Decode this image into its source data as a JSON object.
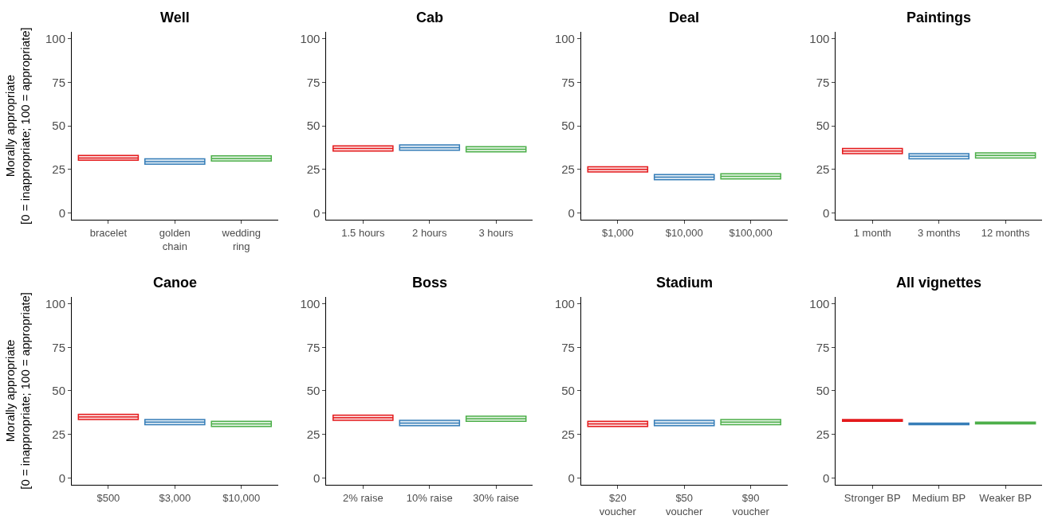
{
  "chart_data": [
    {
      "type": "box",
      "title": "Well",
      "ylabel": "Morally appropriate\n[0 = inappropriate; 100 = appropriate]",
      "categories": [
        "bracelet",
        "golden\nchain",
        "wedding\nring"
      ],
      "colors": [
        "#e41a1c",
        "#377eb8",
        "#4daf4a"
      ],
      "ylim": [
        -4,
        104
      ],
      "yticks": [
        0,
        25,
        50,
        75,
        100
      ],
      "boxes": [
        {
          "low": 30.2,
          "q1": 30.2,
          "median": 31.5,
          "q3": 33.0,
          "high": 33.0
        },
        {
          "low": 28.0,
          "q1": 28.0,
          "median": 29.5,
          "q3": 31.0,
          "high": 31.0
        },
        {
          "low": 29.8,
          "q1": 29.8,
          "median": 31.2,
          "q3": 32.8,
          "high": 32.8
        }
      ]
    },
    {
      "type": "box",
      "title": "Cab",
      "categories": [
        "1.5 hours",
        "2 hours",
        "3 hours"
      ],
      "colors": [
        "#e41a1c",
        "#377eb8",
        "#4daf4a"
      ],
      "ylim": [
        -4,
        104
      ],
      "yticks": [
        0,
        25,
        50,
        75,
        100
      ],
      "boxes": [
        {
          "low": 35.5,
          "q1": 35.5,
          "median": 37.0,
          "q3": 38.5,
          "high": 38.5
        },
        {
          "low": 36.0,
          "q1": 36.0,
          "median": 37.5,
          "q3": 39.0,
          "high": 39.0
        },
        {
          "low": 35.0,
          "q1": 35.0,
          "median": 36.5,
          "q3": 38.0,
          "high": 38.0
        }
      ]
    },
    {
      "type": "box",
      "title": "Deal",
      "categories": [
        "$1,000",
        "$10,000",
        "$100,000"
      ],
      "colors": [
        "#e41a1c",
        "#377eb8",
        "#4daf4a"
      ],
      "ylim": [
        -4,
        104
      ],
      "yticks": [
        0,
        25,
        50,
        75,
        100
      ],
      "boxes": [
        {
          "low": 23.5,
          "q1": 23.5,
          "median": 25.0,
          "q3": 26.5,
          "high": 26.5
        },
        {
          "low": 19.0,
          "q1": 19.0,
          "median": 20.5,
          "q3": 22.0,
          "high": 22.0
        },
        {
          "low": 19.5,
          "q1": 19.5,
          "median": 21.0,
          "q3": 22.5,
          "high": 22.5
        }
      ]
    },
    {
      "type": "box",
      "title": "Paintings",
      "categories": [
        "1 month",
        "3 months",
        "12 months"
      ],
      "colors": [
        "#e41a1c",
        "#377eb8",
        "#4daf4a"
      ],
      "ylim": [
        -4,
        104
      ],
      "yticks": [
        0,
        25,
        50,
        75,
        100
      ],
      "boxes": [
        {
          "low": 34.0,
          "q1": 34.0,
          "median": 35.5,
          "q3": 37.0,
          "high": 37.0
        },
        {
          "low": 31.0,
          "q1": 31.0,
          "median": 32.5,
          "q3": 34.0,
          "high": 34.0
        },
        {
          "low": 31.5,
          "q1": 31.5,
          "median": 33.0,
          "q3": 34.5,
          "high": 34.5
        }
      ]
    },
    {
      "type": "box",
      "title": "Canoe",
      "ylabel": "Morally appropriate\n[0 = inappropriate; 100 = appropriate]",
      "categories": [
        "$500",
        "$3,000",
        "$10,000"
      ],
      "colors": [
        "#e41a1c",
        "#377eb8",
        "#4daf4a"
      ],
      "ylim": [
        -4,
        104
      ],
      "yticks": [
        0,
        25,
        50,
        75,
        100
      ],
      "boxes": [
        {
          "low": 33.5,
          "q1": 33.5,
          "median": 35.0,
          "q3": 36.5,
          "high": 36.5
        },
        {
          "low": 30.5,
          "q1": 30.5,
          "median": 32.0,
          "q3": 33.5,
          "high": 33.5
        },
        {
          "low": 29.5,
          "q1": 29.5,
          "median": 31.0,
          "q3": 32.5,
          "high": 32.5
        }
      ]
    },
    {
      "type": "box",
      "title": "Boss",
      "categories": [
        "2% raise",
        "10% raise",
        "30% raise"
      ],
      "colors": [
        "#e41a1c",
        "#377eb8",
        "#4daf4a"
      ],
      "ylim": [
        -4,
        104
      ],
      "yticks": [
        0,
        25,
        50,
        75,
        100
      ],
      "boxes": [
        {
          "low": 33.0,
          "q1": 33.0,
          "median": 34.5,
          "q3": 36.0,
          "high": 36.0
        },
        {
          "low": 30.0,
          "q1": 30.0,
          "median": 31.5,
          "q3": 33.0,
          "high": 33.0
        },
        {
          "low": 32.5,
          "q1": 32.5,
          "median": 34.0,
          "q3": 35.5,
          "high": 35.5
        }
      ]
    },
    {
      "type": "box",
      "title": "Stadium",
      "categories": [
        "$20\nvoucher",
        "$50\nvoucher",
        "$90\nvoucher"
      ],
      "colors": [
        "#e41a1c",
        "#377eb8",
        "#4daf4a"
      ],
      "ylim": [
        -4,
        104
      ],
      "yticks": [
        0,
        25,
        50,
        75,
        100
      ],
      "boxes": [
        {
          "low": 29.5,
          "q1": 29.5,
          "median": 31.0,
          "q3": 32.5,
          "high": 32.5
        },
        {
          "low": 30.0,
          "q1": 30.0,
          "median": 31.5,
          "q3": 33.0,
          "high": 33.0
        },
        {
          "low": 30.5,
          "q1": 30.5,
          "median": 32.0,
          "q3": 33.5,
          "high": 33.5
        }
      ]
    },
    {
      "type": "box",
      "title": "All vignettes",
      "categories": [
        "Stronger BP",
        "Medium BP",
        "Weaker BP"
      ],
      "colors": [
        "#e41a1c",
        "#377eb8",
        "#4daf4a"
      ],
      "ylim": [
        -4,
        104
      ],
      "yticks": [
        0,
        25,
        50,
        75,
        100
      ],
      "boxes": [
        {
          "low": 32.5,
          "q1": 32.5,
          "median": 33.0,
          "q3": 33.5,
          "high": 33.5
        },
        {
          "low": 30.5,
          "q1": 30.5,
          "median": 31.0,
          "q3": 31.5,
          "high": 31.5
        },
        {
          "low": 31.0,
          "q1": 31.0,
          "median": 31.5,
          "q3": 32.0,
          "high": 32.0
        }
      ]
    }
  ]
}
